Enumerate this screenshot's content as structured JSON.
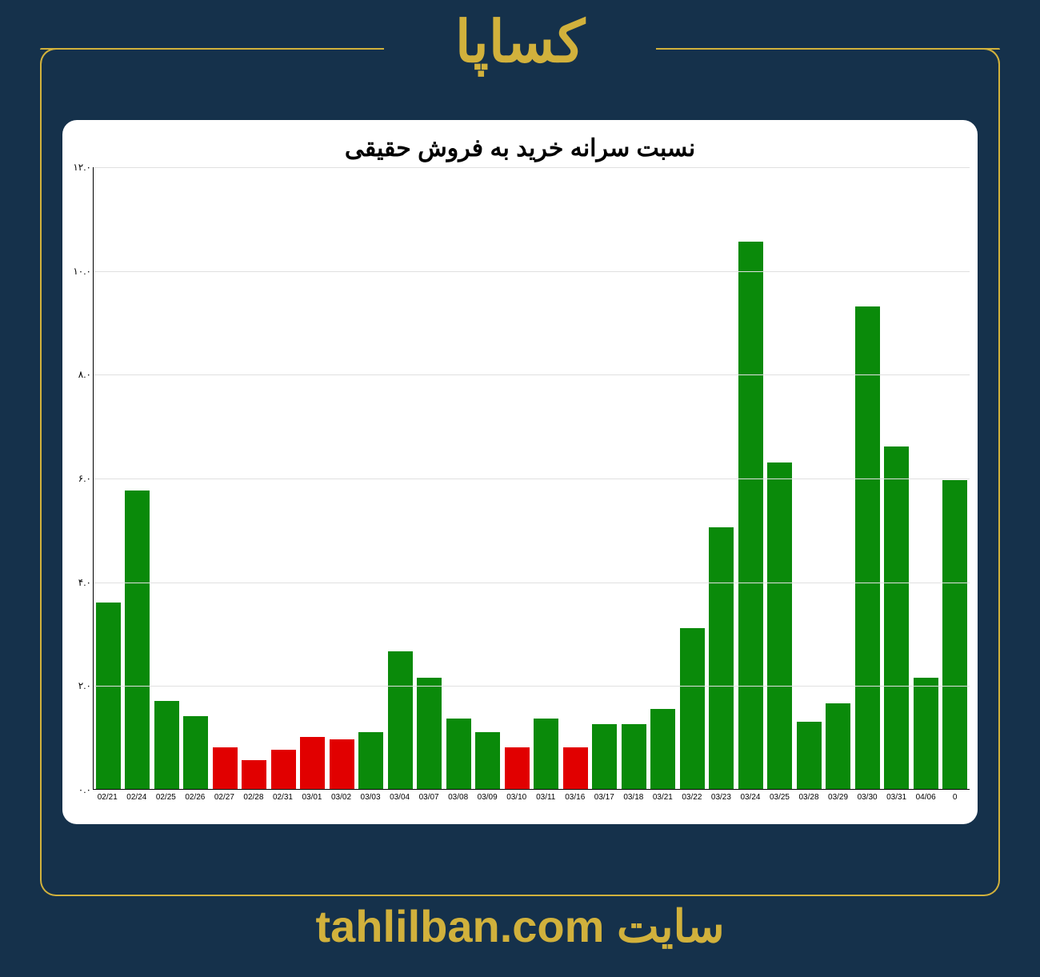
{
  "header": {
    "title": "کساپا",
    "title_color": "#d1b13c",
    "title_fontsize": 72
  },
  "frame": {
    "border_color": "#d1b13c",
    "border_radius": 20,
    "background_color": "#15314b"
  },
  "chart": {
    "type": "bar",
    "title": "نسبت سرانه خرید به فروش حقیقی",
    "title_fontsize": 30,
    "title_color": "#000000",
    "background_color": "#ffffff",
    "panel_border_radius": 18,
    "grid_color": "#e0e0e0",
    "axis_color": "#000000",
    "ylim": [
      0,
      12
    ],
    "ytick_step": 2,
    "ytick_labels": [
      "۰.۰",
      "۲.۰",
      "۴.۰",
      "۶.۰",
      "۸.۰",
      "۱۰.۰",
      "۱۲.۰"
    ],
    "xtick_fontsize": 10,
    "ytick_fontsize": 12,
    "bar_width": 0.86,
    "green": "#0a8a0a",
    "red": "#e10000",
    "categories": [
      "02/21",
      "02/24",
      "02/25",
      "02/26",
      "02/27",
      "02/28",
      "02/31",
      "03/01",
      "03/02",
      "03/03",
      "03/04",
      "03/07",
      "03/08",
      "03/09",
      "03/10",
      "03/11",
      "03/16",
      "03/17",
      "03/18",
      "03/21",
      "03/22",
      "03/23",
      "03/24",
      "03/25",
      "03/28",
      "03/29",
      "03/30",
      "03/31",
      "04/06",
      "0"
    ],
    "values": [
      3.6,
      5.75,
      1.7,
      1.4,
      0.8,
      0.55,
      0.75,
      1.0,
      0.95,
      1.1,
      2.65,
      2.15,
      1.35,
      1.1,
      0.8,
      1.35,
      0.8,
      1.25,
      1.25,
      1.55,
      3.1,
      5.05,
      10.55,
      6.3,
      1.3,
      1.65,
      9.3,
      6.6,
      2.15,
      5.95
    ],
    "bar_colors": [
      "#0a8a0a",
      "#0a8a0a",
      "#0a8a0a",
      "#0a8a0a",
      "#e10000",
      "#e10000",
      "#e10000",
      "#e10000",
      "#e10000",
      "#0a8a0a",
      "#0a8a0a",
      "#0a8a0a",
      "#0a8a0a",
      "#0a8a0a",
      "#e10000",
      "#0a8a0a",
      "#e10000",
      "#0a8a0a",
      "#0a8a0a",
      "#0a8a0a",
      "#0a8a0a",
      "#0a8a0a",
      "#0a8a0a",
      "#0a8a0a",
      "#0a8a0a",
      "#0a8a0a",
      "#0a8a0a",
      "#0a8a0a",
      "#0a8a0a",
      "#0a8a0a"
    ]
  },
  "footer": {
    "site_label": "سایت",
    "url": "tahlilban.com",
    "color": "#d1b13c",
    "fontsize": 56
  }
}
